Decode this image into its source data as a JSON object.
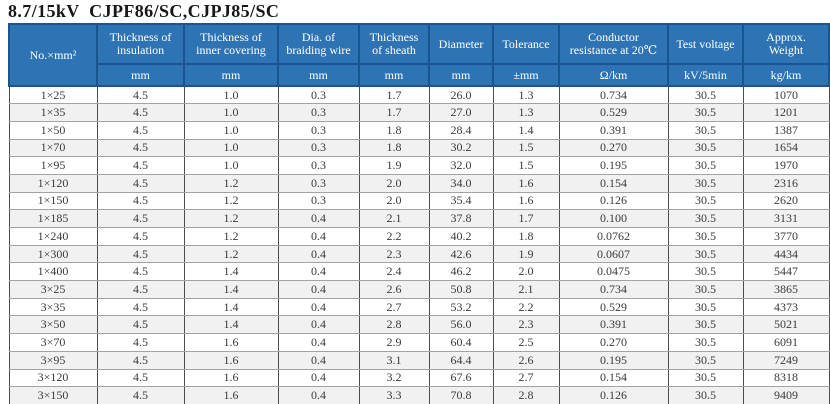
{
  "page": {
    "title": "8.7/15kV  CJPF86/SC,CJPJ85/SC"
  },
  "colors": {
    "header_bg": "#2e74b5",
    "header_border": "#1a5491",
    "header_text": "#ffffff",
    "row_alt_bg": "#f1f1f1",
    "grid_vertical": "#4d4d4d",
    "grid_horizontal": "#a3a3a3",
    "body_text": "#3b3b3b"
  },
  "table": {
    "columns": [
      {
        "id": "size",
        "label": "No.×mm²",
        "unit": ""
      },
      {
        "id": "insulation_thickness",
        "label": "Thickness of insulation",
        "unit": "mm"
      },
      {
        "id": "inner_covering_thickness",
        "label": "Thickness of inner covering",
        "unit": "mm"
      },
      {
        "id": "braiding_wire_dia",
        "label": "Dia. of braiding wire",
        "unit": "mm"
      },
      {
        "id": "sheath_thickness",
        "label": "Thickness of sheath",
        "unit": "mm"
      },
      {
        "id": "diameter",
        "label": "Diameter",
        "unit": "mm"
      },
      {
        "id": "tolerance",
        "label": "Tolerance",
        "unit": "±mm"
      },
      {
        "id": "conductor_resistance",
        "label": "Conductor resistance at 20℃",
        "unit": "Ω/km"
      },
      {
        "id": "test_voltage",
        "label": "Test voltage",
        "unit": "kV/5min"
      },
      {
        "id": "approx_weight",
        "label": "Approx. Weight",
        "unit": "kg/km"
      }
    ],
    "rows": [
      [
        "1×25",
        "4.5",
        "1.0",
        "0.3",
        "1.7",
        "26.0",
        "1.3",
        "0.734",
        "30.5",
        "1070"
      ],
      [
        "1×35",
        "4.5",
        "1.0",
        "0.3",
        "1.7",
        "27.0",
        "1.3",
        "0.529",
        "30.5",
        "1201"
      ],
      [
        "1×50",
        "4.5",
        "1.0",
        "0.3",
        "1.8",
        "28.4",
        "1.4",
        "0.391",
        "30.5",
        "1387"
      ],
      [
        "1×70",
        "4.5",
        "1.0",
        "0.3",
        "1.8",
        "30.2",
        "1.5",
        "0.270",
        "30.5",
        "1654"
      ],
      [
        "1×95",
        "4.5",
        "1.0",
        "0.3",
        "1.9",
        "32.0",
        "1.5",
        "0.195",
        "30.5",
        "1970"
      ],
      [
        "1×120",
        "4.5",
        "1.2",
        "0.3",
        "2.0",
        "34.0",
        "1.6",
        "0.154",
        "30.5",
        "2316"
      ],
      [
        "1×150",
        "4.5",
        "1.2",
        "0.3",
        "2.0",
        "35.4",
        "1.6",
        "0.126",
        "30.5",
        "2620"
      ],
      [
        "1×185",
        "4.5",
        "1.2",
        "0.4",
        "2.1",
        "37.8",
        "1.7",
        "0.100",
        "30.5",
        "3131"
      ],
      [
        "1×240",
        "4.5",
        "1.2",
        "0.4",
        "2.2",
        "40.2",
        "1.8",
        "0.0762",
        "30.5",
        "3770"
      ],
      [
        "1×300",
        "4.5",
        "1.2",
        "0.4",
        "2.3",
        "42.6",
        "1.9",
        "0.0607",
        "30.5",
        "4434"
      ],
      [
        "1×400",
        "4.5",
        "1.4",
        "0.4",
        "2.4",
        "46.2",
        "2.0",
        "0.0475",
        "30.5",
        "5447"
      ],
      [
        "3×25",
        "4.5",
        "1.4",
        "0.4",
        "2.6",
        "50.8",
        "2.1",
        "0.734",
        "30.5",
        "3865"
      ],
      [
        "3×35",
        "4.5",
        "1.4",
        "0.4",
        "2.7",
        "53.2",
        "2.2",
        "0.529",
        "30.5",
        "4373"
      ],
      [
        "3×50",
        "4.5",
        "1.4",
        "0.4",
        "2.8",
        "56.0",
        "2.3",
        "0.391",
        "30.5",
        "5021"
      ],
      [
        "3×70",
        "4.5",
        "1.6",
        "0.4",
        "2.9",
        "60.4",
        "2.5",
        "0.270",
        "30.5",
        "6091"
      ],
      [
        "3×95",
        "4.5",
        "1.6",
        "0.4",
        "3.1",
        "64.4",
        "2.6",
        "0.195",
        "30.5",
        "7249"
      ],
      [
        "3×120",
        "4.5",
        "1.6",
        "0.4",
        "3.2",
        "67.6",
        "2.7",
        "0.154",
        "30.5",
        "8318"
      ],
      [
        "3×150",
        "4.5",
        "1.6",
        "0.4",
        "3.3",
        "70.8",
        "2.8",
        "0.126",
        "30.5",
        "9409"
      ]
    ]
  }
}
